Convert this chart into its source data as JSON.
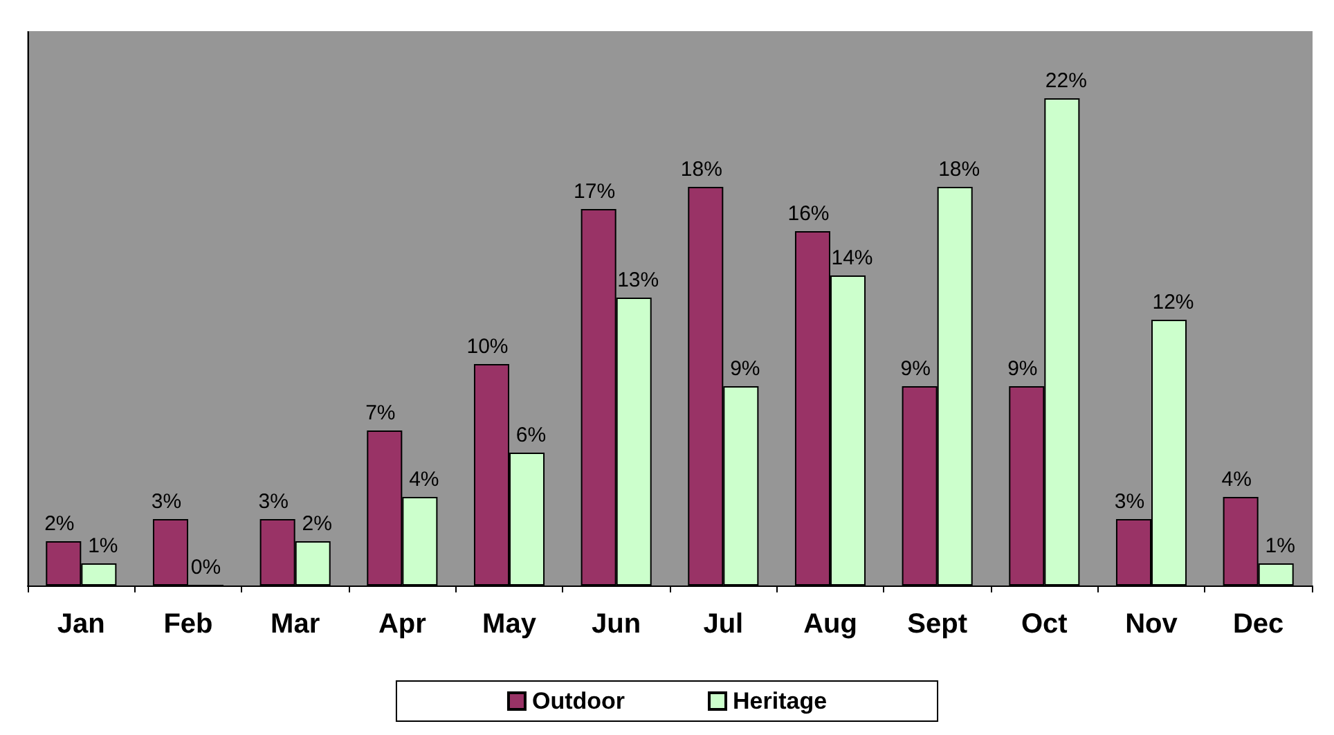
{
  "chart_data": {
    "type": "bar",
    "categories": [
      "Jan",
      "Feb",
      "Mar",
      "Apr",
      "May",
      "Jun",
      "Jul",
      "Aug",
      "Sept",
      "Oct",
      "Nov",
      "Dec"
    ],
    "series": [
      {
        "name": "Outdoor",
        "color": "#993366",
        "values": [
          2,
          3,
          3,
          7,
          10,
          17,
          18,
          16,
          9,
          9,
          3,
          4
        ],
        "value_labels": [
          "2%",
          "3%",
          "3%",
          "7%",
          "10%",
          "17%",
          "18%",
          "16%",
          "9%",
          "9%",
          "3%",
          "4%"
        ]
      },
      {
        "name": "Heritage",
        "color": "#ccffcc",
        "values": [
          1,
          0,
          2,
          4,
          6,
          13,
          9,
          14,
          18,
          22,
          12,
          1
        ],
        "value_labels": [
          "1%",
          "0%",
          "2%",
          "4%",
          "6%",
          "13%",
          "9%",
          "14%",
          "18%",
          "22%",
          "12%",
          "1%"
        ]
      }
    ],
    "legend": "bottom",
    "grid": false,
    "tick_labels": "x"
  }
}
